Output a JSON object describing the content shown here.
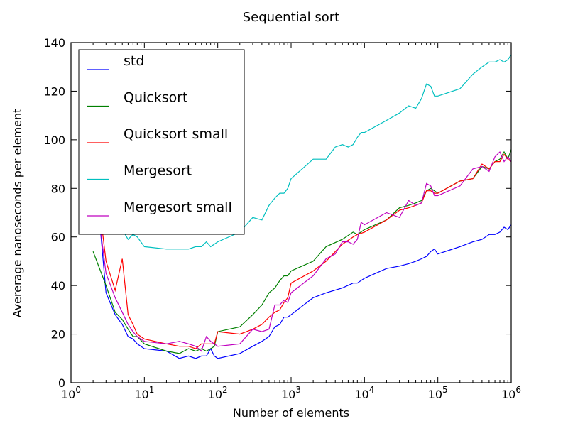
{
  "chart_data": {
    "type": "line",
    "title": "Sequential sort",
    "xlabel": "Number of elements",
    "ylabel": "Avererage nanoseconds per element",
    "xscale": "log",
    "xlim": [
      1,
      1000000
    ],
    "ylim": [
      0,
      140
    ],
    "xticks": [
      {
        "value": 1,
        "base": "10",
        "exp": "0"
      },
      {
        "value": 10,
        "base": "10",
        "exp": "1"
      },
      {
        "value": 100,
        "base": "10",
        "exp": "2"
      },
      {
        "value": 1000,
        "base": "10",
        "exp": "3"
      },
      {
        "value": 10000,
        "base": "10",
        "exp": "4"
      },
      {
        "value": 100000,
        "base": "10",
        "exp": "5"
      },
      {
        "value": 1000000,
        "base": "10",
        "exp": "6"
      }
    ],
    "yticks": [
      0,
      20,
      40,
      60,
      80,
      100,
      120,
      140
    ],
    "grid": false,
    "legend_position": "upper-left",
    "series": [
      {
        "name": "std",
        "color": "#0000ff",
        "points": [
          [
            2,
            80
          ],
          [
            2.5,
            64
          ],
          [
            3,
            37
          ],
          [
            4,
            28
          ],
          [
            5,
            24
          ],
          [
            6,
            19
          ],
          [
            7,
            18
          ],
          [
            8,
            16
          ],
          [
            10,
            14
          ],
          [
            20,
            13
          ],
          [
            30,
            10
          ],
          [
            40,
            11
          ],
          [
            50,
            10
          ],
          [
            60,
            11
          ],
          [
            70,
            11
          ],
          [
            80,
            14
          ],
          [
            90,
            11
          ],
          [
            100,
            10
          ],
          [
            200,
            12
          ],
          [
            300,
            15
          ],
          [
            400,
            17
          ],
          [
            500,
            19
          ],
          [
            600,
            23
          ],
          [
            700,
            24
          ],
          [
            800,
            27
          ],
          [
            900,
            27
          ],
          [
            1000,
            28
          ],
          [
            2000,
            35
          ],
          [
            3000,
            37
          ],
          [
            5000,
            39
          ],
          [
            7000,
            41
          ],
          [
            8000,
            41
          ],
          [
            10000,
            43
          ],
          [
            20000,
            47
          ],
          [
            30000,
            48
          ],
          [
            40000,
            49
          ],
          [
            50000,
            50
          ],
          [
            60000,
            51
          ],
          [
            70000,
            52
          ],
          [
            80000,
            54
          ],
          [
            90000,
            55
          ],
          [
            100000,
            53
          ],
          [
            200000,
            56
          ],
          [
            300000,
            58
          ],
          [
            400000,
            59
          ],
          [
            500000,
            61
          ],
          [
            600000,
            61
          ],
          [
            700000,
            62
          ],
          [
            800000,
            64
          ],
          [
            900000,
            63
          ],
          [
            1000000,
            65
          ]
        ]
      },
      {
        "name": "Quicksort",
        "color": "#008000",
        "points": [
          [
            2,
            54
          ],
          [
            3,
            40
          ],
          [
            4,
            29
          ],
          [
            5,
            26
          ],
          [
            6,
            22
          ],
          [
            7,
            19
          ],
          [
            8,
            19
          ],
          [
            10,
            16
          ],
          [
            20,
            13
          ],
          [
            30,
            12
          ],
          [
            40,
            14
          ],
          [
            50,
            13
          ],
          [
            60,
            14
          ],
          [
            70,
            13
          ],
          [
            80,
            14
          ],
          [
            90,
            15
          ],
          [
            100,
            21
          ],
          [
            200,
            23
          ],
          [
            300,
            28
          ],
          [
            400,
            32
          ],
          [
            500,
            37
          ],
          [
            600,
            39
          ],
          [
            700,
            42
          ],
          [
            800,
            44
          ],
          [
            900,
            44
          ],
          [
            1000,
            46
          ],
          [
            2000,
            50
          ],
          [
            3000,
            56
          ],
          [
            5000,
            59
          ],
          [
            7000,
            62
          ],
          [
            8000,
            61
          ],
          [
            10000,
            63
          ],
          [
            20000,
            67
          ],
          [
            30000,
            72
          ],
          [
            40000,
            73
          ],
          [
            50000,
            74
          ],
          [
            60000,
            75
          ],
          [
            70000,
            79
          ],
          [
            80000,
            80
          ],
          [
            90000,
            79
          ],
          [
            100000,
            78
          ],
          [
            200000,
            83
          ],
          [
            300000,
            84
          ],
          [
            400000,
            89
          ],
          [
            500000,
            88
          ],
          [
            600000,
            91
          ],
          [
            700000,
            92
          ],
          [
            800000,
            95
          ],
          [
            900000,
            92
          ],
          [
            1000000,
            96
          ]
        ]
      },
      {
        "name": "Quicksort small",
        "color": "#ff0000",
        "points": [
          [
            2.5,
            70
          ],
          [
            3,
            50
          ],
          [
            4,
            38
          ],
          [
            5,
            51
          ],
          [
            6,
            28
          ],
          [
            7,
            24
          ],
          [
            8,
            20
          ],
          [
            10,
            18
          ],
          [
            20,
            16
          ],
          [
            30,
            15
          ],
          [
            40,
            15
          ],
          [
            50,
            14
          ],
          [
            60,
            16
          ],
          [
            70,
            16
          ],
          [
            80,
            16
          ],
          [
            90,
            16
          ],
          [
            100,
            21
          ],
          [
            200,
            20
          ],
          [
            300,
            22
          ],
          [
            400,
            24
          ],
          [
            500,
            27
          ],
          [
            600,
            29
          ],
          [
            700,
            30
          ],
          [
            800,
            33
          ],
          [
            900,
            35
          ],
          [
            1000,
            41
          ],
          [
            2000,
            46
          ],
          [
            3000,
            50
          ],
          [
            5000,
            57
          ],
          [
            7000,
            60
          ],
          [
            8000,
            61
          ],
          [
            10000,
            62
          ],
          [
            20000,
            67
          ],
          [
            30000,
            71
          ],
          [
            40000,
            72
          ],
          [
            50000,
            73
          ],
          [
            60000,
            74
          ],
          [
            70000,
            79
          ],
          [
            80000,
            79
          ],
          [
            90000,
            78
          ],
          [
            100000,
            78
          ],
          [
            200000,
            83
          ],
          [
            300000,
            84
          ],
          [
            400000,
            90
          ],
          [
            500000,
            88
          ],
          [
            600000,
            91
          ],
          [
            700000,
            91
          ],
          [
            800000,
            94
          ],
          [
            900000,
            92
          ],
          [
            1000000,
            91
          ]
        ]
      },
      {
        "name": "Mergesort",
        "color": "#00bfbf",
        "points": [
          [
            3,
            80
          ],
          [
            4,
            71
          ],
          [
            5,
            63
          ],
          [
            6,
            59
          ],
          [
            7,
            61
          ],
          [
            8,
            60
          ],
          [
            10,
            56
          ],
          [
            20,
            55
          ],
          [
            30,
            55
          ],
          [
            40,
            55
          ],
          [
            50,
            56
          ],
          [
            60,
            56
          ],
          [
            70,
            58
          ],
          [
            80,
            56
          ],
          [
            100,
            58
          ],
          [
            200,
            62
          ],
          [
            300,
            68
          ],
          [
            400,
            67
          ],
          [
            500,
            73
          ],
          [
            600,
            76
          ],
          [
            700,
            78
          ],
          [
            800,
            78
          ],
          [
            900,
            80
          ],
          [
            1000,
            84
          ],
          [
            2000,
            92
          ],
          [
            3000,
            92
          ],
          [
            4000,
            97
          ],
          [
            5000,
            98
          ],
          [
            6000,
            97
          ],
          [
            7000,
            98
          ],
          [
            8000,
            101
          ],
          [
            9000,
            103
          ],
          [
            10000,
            103
          ],
          [
            20000,
            108
          ],
          [
            30000,
            111
          ],
          [
            40000,
            114
          ],
          [
            50000,
            113
          ],
          [
            60000,
            117
          ],
          [
            70000,
            123
          ],
          [
            80000,
            122
          ],
          [
            90000,
            118
          ],
          [
            100000,
            118
          ],
          [
            200000,
            121
          ],
          [
            300000,
            127
          ],
          [
            400000,
            130
          ],
          [
            500000,
            132
          ],
          [
            600000,
            132
          ],
          [
            700000,
            133
          ],
          [
            800000,
            132
          ],
          [
            900000,
            133
          ],
          [
            1000000,
            135
          ]
        ]
      },
      {
        "name": "Mergesort small",
        "color": "#bf00bf",
        "points": [
          [
            2.5,
            64
          ],
          [
            3,
            45
          ],
          [
            4,
            35
          ],
          [
            5,
            29
          ],
          [
            6,
            24
          ],
          [
            7,
            21
          ],
          [
            8,
            19
          ],
          [
            10,
            17
          ],
          [
            20,
            16
          ],
          [
            30,
            17
          ],
          [
            40,
            16
          ],
          [
            50,
            15
          ],
          [
            60,
            13
          ],
          [
            70,
            19
          ],
          [
            80,
            17
          ],
          [
            100,
            15
          ],
          [
            200,
            16
          ],
          [
            300,
            22
          ],
          [
            400,
            21
          ],
          [
            500,
            22
          ],
          [
            600,
            32
          ],
          [
            700,
            32
          ],
          [
            800,
            34
          ],
          [
            900,
            33
          ],
          [
            1000,
            37
          ],
          [
            2000,
            44
          ],
          [
            3000,
            51
          ],
          [
            4000,
            53
          ],
          [
            5000,
            58
          ],
          [
            6000,
            58
          ],
          [
            7000,
            57
          ],
          [
            8000,
            59
          ],
          [
            9000,
            66
          ],
          [
            10000,
            65
          ],
          [
            20000,
            70
          ],
          [
            30000,
            68
          ],
          [
            40000,
            75
          ],
          [
            50000,
            73
          ],
          [
            60000,
            74
          ],
          [
            70000,
            82
          ],
          [
            80000,
            81
          ],
          [
            90000,
            77
          ],
          [
            100000,
            77
          ],
          [
            200000,
            81
          ],
          [
            300000,
            88
          ],
          [
            400000,
            89
          ],
          [
            500000,
            87
          ],
          [
            600000,
            93
          ],
          [
            700000,
            95
          ],
          [
            800000,
            91
          ],
          [
            900000,
            93
          ],
          [
            1000000,
            91
          ]
        ]
      }
    ]
  }
}
